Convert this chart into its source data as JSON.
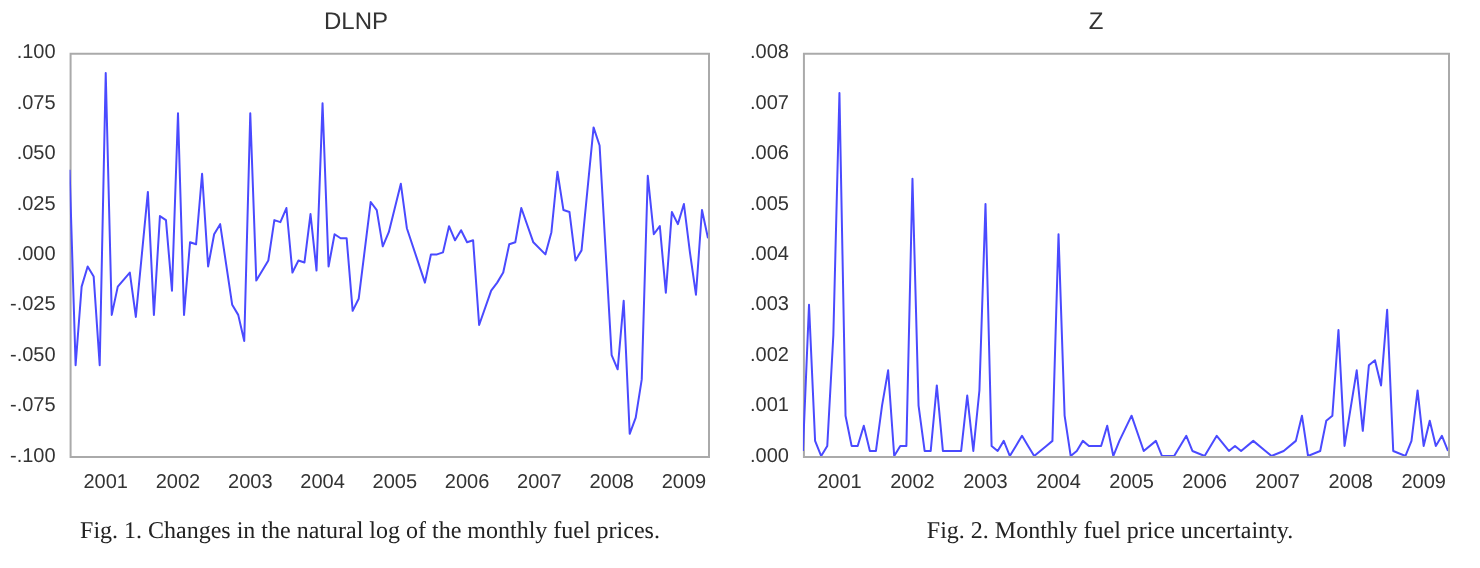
{
  "chart_data": [
    {
      "type": "line",
      "title": "DLNP",
      "annotations": [
        "Fig. 1. Changes in the natural log of the monthly fuel prices."
      ],
      "grid": false,
      "legend": false,
      "marker": "none",
      "line_style": "solid",
      "xlim": [
        "2000-07",
        "2009-05"
      ],
      "xticks": [
        "2001",
        "2002",
        "2003",
        "2004",
        "2005",
        "2006",
        "2007",
        "2008",
        "2009"
      ],
      "ylim": [
        -0.1,
        0.1
      ],
      "yticks": [
        {
          "value": -0.1,
          "label": "-.100"
        },
        {
          "value": -0.075,
          "label": "-.075"
        },
        {
          "value": -0.05,
          "label": "-.050"
        },
        {
          "value": -0.025,
          "label": "-.025"
        },
        {
          "value": 0,
          "label": ".000"
        },
        {
          "value": 0.025,
          "label": ".025"
        },
        {
          "value": 0.05,
          "label": ".050"
        },
        {
          "value": 0.075,
          "label": ".075"
        },
        {
          "value": 0.1,
          "label": ".100"
        }
      ],
      "series": [
        {
          "color": "#4a4aff",
          "x": [
            "2000-07",
            "2000-08",
            "2000-09",
            "2000-10",
            "2000-11",
            "2000-12",
            "2001-01",
            "2001-02",
            "2001-03",
            "2001-05",
            "2001-06",
            "2001-08",
            "2001-09",
            "2001-10",
            "2001-11",
            "2001-12",
            "2002-01",
            "2002-02",
            "2002-03",
            "2002-04",
            "2002-05",
            "2002-06",
            "2002-07",
            "2002-08",
            "2002-10",
            "2002-11",
            "2002-12",
            "2003-01",
            "2003-02",
            "2003-04",
            "2003-05",
            "2003-06",
            "2003-07",
            "2003-08",
            "2003-09",
            "2003-10",
            "2003-11",
            "2003-12",
            "2004-01",
            "2004-02",
            "2004-03",
            "2004-04",
            "2004-05",
            "2004-06",
            "2004-07",
            "2004-09",
            "2004-10",
            "2004-11",
            "2004-12",
            "2005-02",
            "2005-03",
            "2005-06",
            "2005-07",
            "2005-08",
            "2005-09",
            "2005-10",
            "2005-11",
            "2005-12",
            "2006-01",
            "2006-02",
            "2006-03",
            "2006-05",
            "2006-06",
            "2006-07",
            "2006-08",
            "2006-09",
            "2006-10",
            "2006-12",
            "2007-02",
            "2007-03",
            "2007-04",
            "2007-05",
            "2007-06",
            "2007-07",
            "2007-08",
            "2007-10",
            "2007-11",
            "2008-01",
            "2008-02",
            "2008-03",
            "2008-04",
            "2008-05",
            "2008-06",
            "2008-07",
            "2008-08",
            "2008-09",
            "2008-10",
            "2008-11",
            "2008-12",
            "2009-01",
            "2009-02",
            "2009-03",
            "2009-04",
            "2009-05"
          ],
          "values": [
            0.042,
            -0.055,
            -0.016,
            -0.006,
            -0.011,
            -0.055,
            0.09,
            -0.03,
            -0.016,
            -0.009,
            -0.031,
            0.031,
            -0.03,
            0.019,
            0.017,
            -0.018,
            0.07,
            -0.03,
            0.006,
            0.005,
            0.04,
            -0.006,
            0.01,
            0.015,
            -0.025,
            -0.03,
            -0.043,
            0.07,
            -0.013,
            -0.003,
            0.017,
            0.016,
            0.023,
            -0.009,
            -0.003,
            -0.004,
            0.02,
            -0.008,
            0.075,
            -0.006,
            0.01,
            0.008,
            0.008,
            -0.028,
            -0.022,
            0.026,
            0.022,
            0.004,
            0.011,
            0.035,
            0.013,
            -0.014,
            0.0,
            0.0,
            0.001,
            0.014,
            0.007,
            0.012,
            0.006,
            0.007,
            -0.035,
            -0.018,
            -0.014,
            -0.009,
            0.005,
            0.006,
            0.023,
            0.006,
            0.0,
            0.011,
            0.041,
            0.022,
            0.021,
            -0.003,
            0.002,
            0.063,
            0.054,
            -0.05,
            -0.057,
            -0.023,
            -0.089,
            -0.081,
            -0.062,
            0.039,
            0.01,
            0.014,
            -0.019,
            0.021,
            0.015,
            0.025,
            0.001,
            -0.02,
            0.022,
            0.008
          ]
        }
      ]
    },
    {
      "type": "line",
      "title": "Z",
      "annotations": [
        "Fig. 2. Monthly fuel price uncertainty."
      ],
      "grid": false,
      "legend": false,
      "marker": "none",
      "line_style": "solid",
      "xlim": [
        "2000-07",
        "2009-05"
      ],
      "xticks": [
        "2001",
        "2002",
        "2003",
        "2004",
        "2005",
        "2006",
        "2007",
        "2008",
        "2009"
      ],
      "ylim": [
        0,
        0.008
      ],
      "yticks": [
        {
          "value": 0,
          "label": ".000"
        },
        {
          "value": 0.001,
          "label": ".001"
        },
        {
          "value": 0.002,
          "label": ".002"
        },
        {
          "value": 0.003,
          "label": ".003"
        },
        {
          "value": 0.004,
          "label": ".004"
        },
        {
          "value": 0.005,
          "label": ".005"
        },
        {
          "value": 0.006,
          "label": ".006"
        },
        {
          "value": 0.007,
          "label": ".007"
        },
        {
          "value": 0.008,
          "label": ".008"
        }
      ],
      "series": [
        {
          "color": "#4a4aff",
          "x": [
            "2000-07",
            "2000-08",
            "2000-09",
            "2000-10",
            "2000-11",
            "2000-12",
            "2001-01",
            "2001-02",
            "2001-03",
            "2001-04",
            "2001-05",
            "2001-06",
            "2001-07",
            "2001-08",
            "2001-09",
            "2001-10",
            "2001-11",
            "2001-12",
            "2002-01",
            "2002-02",
            "2002-03",
            "2002-04",
            "2002-05",
            "2002-06",
            "2002-07",
            "2002-08",
            "2002-09",
            "2002-10",
            "2002-11",
            "2002-12",
            "2003-01",
            "2003-02",
            "2003-03",
            "2003-04",
            "2003-05",
            "2003-06",
            "2003-07",
            "2003-08",
            "2003-09",
            "2003-10",
            "2003-11",
            "2003-12",
            "2004-01",
            "2004-02",
            "2004-03",
            "2004-04",
            "2004-05",
            "2004-06",
            "2004-07",
            "2004-08",
            "2004-09",
            "2004-10",
            "2004-11",
            "2005-01",
            "2005-03",
            "2005-05",
            "2005-06",
            "2005-08",
            "2005-10",
            "2005-11",
            "2006-01",
            "2006-03",
            "2006-05",
            "2006-06",
            "2006-07",
            "2006-09",
            "2006-11",
            "2006-12",
            "2007-02",
            "2007-04",
            "2007-05",
            "2007-06",
            "2007-08",
            "2007-09",
            "2007-10",
            "2007-11",
            "2007-12",
            "2008-02",
            "2008-03",
            "2008-04",
            "2008-05",
            "2008-06",
            "2008-07",
            "2008-08",
            "2008-10",
            "2008-11",
            "2008-12",
            "2009-01",
            "2009-02",
            "2009-03",
            "2009-04",
            "2009-05"
          ],
          "values": [
            0.0001,
            0.003,
            0.0003,
            0.0,
            0.0002,
            0.0024,
            0.0072,
            0.0008,
            0.0002,
            0.0002,
            0.0006,
            0.0001,
            0.0001,
            0.001,
            0.0017,
            0.0,
            0.0002,
            0.0002,
            0.0055,
            0.001,
            0.0001,
            0.0001,
            0.0014,
            0.0001,
            0.0001,
            0.0001,
            0.0001,
            0.0012,
            0.0001,
            0.0013,
            0.005,
            0.0002,
            0.0001,
            0.0003,
            0.0,
            0.0002,
            0.0004,
            0.0002,
            0.0,
            0.0001,
            0.0002,
            0.0003,
            0.0044,
            0.0008,
            0.0,
            0.0001,
            0.0003,
            0.0002,
            0.0002,
            0.0002,
            0.0006,
            0.0,
            0.0003,
            0.0008,
            0.0001,
            0.0003,
            0.0,
            0.0,
            0.0004,
            0.0001,
            0.0,
            0.0004,
            0.0001,
            0.0002,
            0.0001,
            0.0003,
            0.0001,
            0.0,
            0.0001,
            0.0003,
            0.0008,
            0.0,
            0.0001,
            0.0007,
            0.0008,
            0.0025,
            0.0002,
            0.0017,
            0.0005,
            0.0018,
            0.0019,
            0.0014,
            0.0029,
            0.0001,
            0.0,
            0.0003,
            0.0013,
            0.0002,
            0.0007,
            0.0002,
            0.0004,
            0.0001
          ]
        }
      ]
    }
  ]
}
